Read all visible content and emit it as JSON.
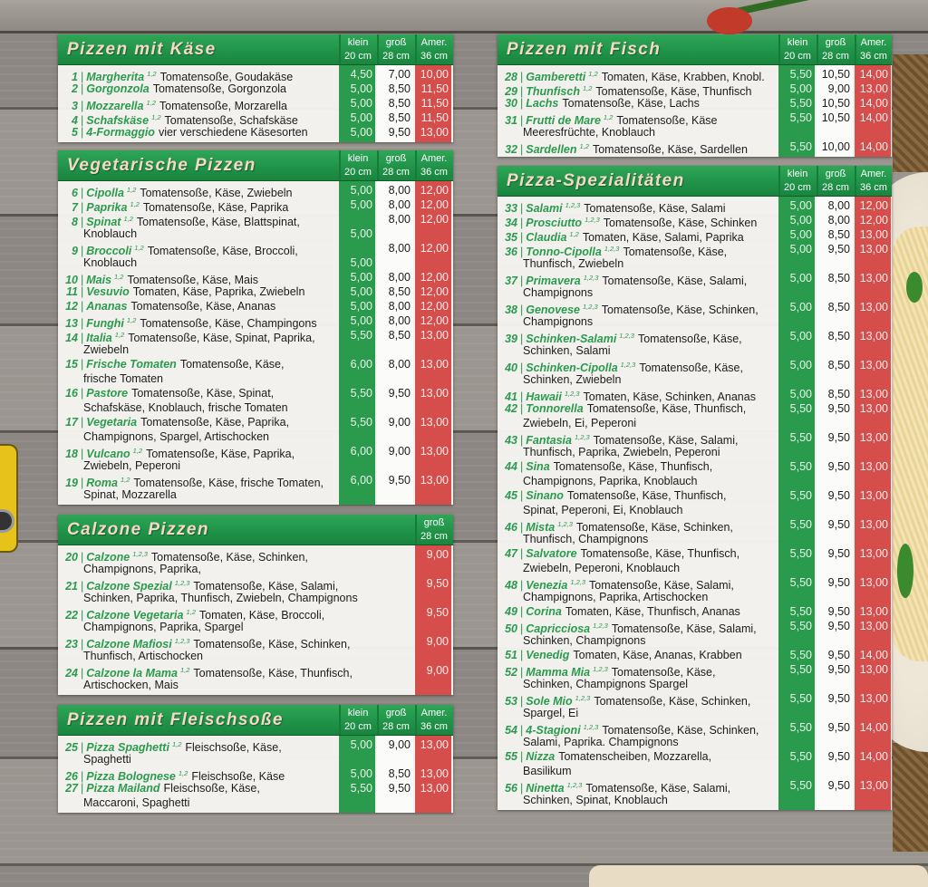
{
  "colors": {
    "green": "#2a9b4d",
    "red": "#d64e4b",
    "header_green": "#1f9248",
    "title_text": "#f6d8c6"
  },
  "sections": [
    {
      "title": "Pizzen mit Käse",
      "columns": [
        {
          "l1": "klein",
          "l2": "20 cm"
        },
        {
          "l1": "groß",
          "l2": "28 cm"
        },
        {
          "l1": "Amer.",
          "l2": "36 cm"
        }
      ],
      "items": [
        {
          "n": "1",
          "name": "Margherita",
          "sup": "1,2",
          "desc": "Tomatensoße, Goudakäse",
          "p": [
            "4,50",
            "7,00",
            "10,00"
          ]
        },
        {
          "n": "2",
          "name": "Gorgonzola",
          "desc": "Tomatensoße, Gorgonzola",
          "p": [
            "5,00",
            "8,50",
            "11,50"
          ]
        },
        {
          "n": "3",
          "name": "Mozzarella",
          "sup": "1,2",
          "desc": "Tomatensoße, Morzarella",
          "p": [
            "5,00",
            "8,50",
            "11,50"
          ]
        },
        {
          "n": "4",
          "name": "Schafskäse",
          "sup": "1,2",
          "desc": "Tomatensoße, Schafskäse",
          "p": [
            "5,00",
            "8,50",
            "11,50"
          ]
        },
        {
          "n": "5",
          "name": "4-Formaggio",
          "desc": "vier verschiedene Käsesorten",
          "p": [
            "5,00",
            "9,50",
            "13,00"
          ]
        }
      ]
    },
    {
      "title": "Vegetarische Pizzen",
      "columns": [
        {
          "l1": "klein",
          "l2": "20 cm"
        },
        {
          "l1": "groß",
          "l2": "28 cm"
        },
        {
          "l1": "Amer.",
          "l2": "36 cm"
        }
      ],
      "items": [
        {
          "n": "6",
          "name": "Cipolla",
          "sup": "1,2",
          "desc": "Tomatensoße, Käse, Zwiebeln",
          "p": [
            "5,00",
            "8,00",
            "12,00"
          ]
        },
        {
          "n": "7",
          "name": "Paprika",
          "sup": "1,2",
          "desc": "Tomatensoße, Käse, Paprika",
          "p": [
            "5,00",
            "8,00",
            "12,00"
          ]
        },
        {
          "n": "8",
          "name": "Spinat",
          "sup": "1,2",
          "desc": "Tomatensoße, Käse, Blattspinat,",
          "desc2": "Knoblauch",
          "p": [
            "",
            "8,00",
            "12,00"
          ],
          "p2": [
            "5,00",
            "",
            ""
          ]
        },
        {
          "n": "9",
          "name": "Broccoli",
          "sup": "1,2",
          "desc": "Tomatensoße, Käse, Broccoli,",
          "desc2": "Knoblauch",
          "p": [
            "",
            "8,00",
            "12,00"
          ],
          "p2": [
            "5,00",
            "",
            ""
          ]
        },
        {
          "n": "10",
          "name": "Mais",
          "sup": "1,2",
          "desc": "Tomatensoße, Käse, Mais",
          "p": [
            "5,00",
            "8,00",
            "12,00"
          ]
        },
        {
          "n": "11",
          "name": "Vesuvio",
          "desc": "Tomaten, Käse, Paprika, Zwiebeln",
          "p": [
            "5,00",
            "8,50",
            "12,00"
          ]
        },
        {
          "n": "12",
          "name": "Ananas",
          "desc": "Tomatensoße, Käse, Ananas",
          "p": [
            "5,00",
            "8,00",
            "12,00"
          ]
        },
        {
          "n": "13",
          "name": "Funghi",
          "sup": "1,2",
          "desc": "Tomatensoße, Käse, Champingons",
          "p": [
            "5,00",
            "8,00",
            "12,00"
          ]
        },
        {
          "n": "14",
          "name": "Italia",
          "sup": "1,2",
          "desc": "Tomatensoße, Käse, Spinat, Paprika,",
          "desc2": "Zwiebeln",
          "p": [
            "5,50",
            "8,50",
            "13,00"
          ]
        },
        {
          "n": "15",
          "name": "Frische Tomaten",
          "desc": "Tomatensoße, Käse,",
          "desc2": "frische Tomaten",
          "p": [
            "6,00",
            "8,00",
            "13,00"
          ]
        },
        {
          "n": "16",
          "name": "Pastore",
          "desc": "Tomatensoße, Käse, Spinat,",
          "desc2": "Schafskäse, Knoblauch, frische Tomaten",
          "p": [
            "5,50",
            "9,50",
            "13,00"
          ]
        },
        {
          "n": "17",
          "name": "Vegetaria",
          "desc": "Tomatensoße, Käse, Paprika,",
          "desc2": "Champignons, Spargel, Artischocken",
          "p": [
            "5,50",
            "9,00",
            "13,00"
          ]
        },
        {
          "n": "18",
          "name": "Vulcano",
          "sup": "1,2",
          "desc": "Tomatensoße, Käse, Paprika,",
          "desc2": "Zwiebeln, Peperoni",
          "p": [
            "6,00",
            "9,00",
            "13,00"
          ]
        },
        {
          "n": "19",
          "name": "Roma",
          "sup": "1,2",
          "desc": "Tomatensoße, Käse, frische Tomaten,",
          "desc2": "Spinat, Mozzarella",
          "p": [
            "6,00",
            "9,50",
            "13,00"
          ]
        }
      ]
    },
    {
      "title": "Calzone Pizzen",
      "columns": [
        {
          "l1": "groß",
          "l2": "28 cm"
        }
      ],
      "items": [
        {
          "n": "20",
          "name": "Calzone",
          "sup": "1,2,3",
          "desc": "Tomatensoße, Käse, Schinken,",
          "desc2": "Champignons, Paprika,",
          "p": [
            "9,00"
          ]
        },
        {
          "n": "21",
          "name": "Calzone Spezial",
          "sup": "1,2,3",
          "desc": "Tomatensoße, Käse, Salami,",
          "desc2": "Schinken, Paprika, Thunfisch, Zwiebeln, Champignons",
          "p": [
            "9,50"
          ]
        },
        {
          "n": "22",
          "name": "Calzone Vegetaria",
          "sup": "1,2",
          "desc": "Tomaten, Käse, Broccoli,",
          "desc2": "Champignons, Paprika, Spargel",
          "p": [
            "9,50"
          ]
        },
        {
          "n": "23",
          "name": "Calzone Mafiosi",
          "sup": "1,2,3",
          "desc": "Tomatensoße, Käse, Schinken,",
          "desc2": "Thunfisch, Artischocken",
          "p": [
            "9,00"
          ]
        },
        {
          "n": "24",
          "name": "Calzone la Mama",
          "sup": "1,2",
          "desc": "Tomatensoße, Käse, Thunfisch,",
          "desc2": "Artischocken, Mais",
          "p": [
            "9,00"
          ]
        }
      ]
    },
    {
      "title": "Pizzen mit Fleischsoße",
      "columns": [
        {
          "l1": "klein",
          "l2": "20 cm"
        },
        {
          "l1": "groß",
          "l2": "28 cm"
        },
        {
          "l1": "Amer.",
          "l2": "36 cm"
        }
      ],
      "items": [
        {
          "n": "25",
          "name": "Pizza Spaghetti",
          "sup": "1,2",
          "desc": "Fleischsoße, Käse,",
          "desc2": "Spaghetti",
          "p": [
            "5,00",
            "9,00",
            "13,00"
          ]
        },
        {
          "n": "26",
          "name": "Pizza Bolognese",
          "sup": "1,2",
          "desc": "Fleischsoße, Käse",
          "p": [
            "5,00",
            "8,50",
            "13,00"
          ]
        },
        {
          "n": "27",
          "name": "Pizza Mailand",
          "desc": "Fleischsoße, Käse,",
          "desc2": "Maccaroni, Spaghetti",
          "p": [
            "5,50",
            "9,50",
            "13,00"
          ]
        }
      ]
    },
    {
      "title": "Pizzen mit Fisch",
      "columns": [
        {
          "l1": "klein",
          "l2": "20 cm"
        },
        {
          "l1": "groß",
          "l2": "28 cm"
        },
        {
          "l1": "Amer.",
          "l2": "36 cm"
        }
      ],
      "items": [
        {
          "n": "28",
          "name": "Gamberetti",
          "sup": "1,2",
          "desc": "Tomaten, Käse, Krabben, Knobl.",
          "p": [
            "5,50",
            "10,50",
            "14,00"
          ]
        },
        {
          "n": "29",
          "name": "Thunfisch",
          "sup": "1,2",
          "desc": "Tomatensoße, Käse, Thunfisch",
          "p": [
            "5,00",
            "9,00",
            "13,00"
          ]
        },
        {
          "n": "30",
          "name": "Lachs",
          "desc": "Tomatensoße, Käse, Lachs",
          "p": [
            "5,50",
            "10,50",
            "14,00"
          ]
        },
        {
          "n": "31",
          "name": "Frutti de Mare",
          "sup": "1,2",
          "desc": "Tomatensoße, Käse",
          "desc2": "Meeresfrüchte, Knoblauch",
          "p": [
            "5,50",
            "10,50",
            "14,00"
          ]
        },
        {
          "n": "32",
          "name": "Sardellen",
          "sup": "1,2",
          "desc": "Tomatensoße, Käse, Sardellen",
          "p": [
            "5,50",
            "10,00",
            "14,00"
          ]
        }
      ]
    },
    {
      "title": "Pizza-Spezialitäten",
      "columns": [
        {
          "l1": "klein",
          "l2": "20 cm"
        },
        {
          "l1": "groß",
          "l2": "28 cm"
        },
        {
          "l1": "Amer.",
          "l2": "36 cm"
        }
      ],
      "items": [
        {
          "n": "33",
          "name": "Salami",
          "sup": "1,2,3",
          "desc": "Tomatensoße, Käse, Salami",
          "p": [
            "5,00",
            "8,00",
            "12,00"
          ]
        },
        {
          "n": "34",
          "name": "Prosciutto",
          "sup": "1,2,3",
          "desc": "Tomatensoße, Käse, Schinken",
          "p": [
            "5,00",
            "8,00",
            "12,00"
          ]
        },
        {
          "n": "35",
          "name": "Claudia",
          "sup": "1,2",
          "desc": "Tomaten, Käse, Salami, Paprika",
          "p": [
            "5,00",
            "8,50",
            "13,00"
          ]
        },
        {
          "n": "36",
          "name": "Tonno-Cipolla",
          "sup": "1,2,3",
          "desc": "Tomatensoße, Käse,",
          "desc2": "Thunfisch, Zwiebeln",
          "p": [
            "5,00",
            "9,50",
            "13,00"
          ]
        },
        {
          "n": "37",
          "name": "Primavera",
          "sup": "1,2,3",
          "desc": "Tomatensoße, Käse, Salami,",
          "desc2": "Champignons",
          "p": [
            "5,00",
            "8,50",
            "13,00"
          ]
        },
        {
          "n": "38",
          "name": "Genovese",
          "sup": "1,2,3",
          "desc": "Tomatensoße, Käse, Schinken,",
          "desc2": "Champignons",
          "p": [
            "5,00",
            "8,50",
            "13,00"
          ]
        },
        {
          "n": "39",
          "name": "Schinken-Salami",
          "sup": "1,2,3",
          "desc": "Tomatensoße, Käse,",
          "desc2": "Schinken, Salami",
          "p": [
            "5,00",
            "8,50",
            "13,00"
          ]
        },
        {
          "n": "40",
          "name": "Schinken-Cipolla",
          "sup": "1,2,3",
          "desc": "Tomatensoße, Käse,",
          "desc2": "Schinken, Zwiebeln",
          "p": [
            "5,00",
            "8,50",
            "13,00"
          ]
        },
        {
          "n": "41",
          "name": "Hawaii",
          "sup": "1,2,3",
          "desc": "Tomaten, Käse, Schinken, Ananas",
          "p": [
            "5,00",
            "8,50",
            "13,00"
          ]
        },
        {
          "n": "42",
          "name": "Tonnorella",
          "desc": "Tomatensoße, Käse, Thunfisch,",
          "desc2": "Zwiebeln, Ei, Peperoni",
          "p": [
            "5,50",
            "9,50",
            "13,00"
          ]
        },
        {
          "n": "43",
          "name": "Fantasia",
          "sup": "1,2,3",
          "desc": "Tomatensoße, Käse, Salami,",
          "desc2": "Thunfisch, Paprika, Zwiebeln, Peperoni",
          "p": [
            "5,50",
            "9,50",
            "13,00"
          ]
        },
        {
          "n": "44",
          "name": "Sina",
          "desc": "Tomatensoße, Käse, Thunfisch,",
          "desc2": "Champignons, Paprika, Knoblauch",
          "p": [
            "5,50",
            "9,50",
            "13,00"
          ]
        },
        {
          "n": "45",
          "name": "Sinano",
          "desc": "Tomatensoße, Käse, Thunfisch,",
          "desc2": "Spinat, Peperoni, Ei, Knoblauch",
          "p": [
            "5,50",
            "9,50",
            "13,00"
          ]
        },
        {
          "n": "46",
          "name": "Mista",
          "sup": "1,2,3",
          "desc": "Tomatensoße, Käse, Schinken,",
          "desc2": "Thunfisch, Champignons",
          "p": [
            "5,50",
            "9,50",
            "13,00"
          ]
        },
        {
          "n": "47",
          "name": "Salvatore",
          "desc": "Tomatensoße, Käse, Thunfisch,",
          "desc2": "Zwiebeln, Peperoni, Knoblauch",
          "p": [
            "5,50",
            "9,50",
            "13,00"
          ]
        },
        {
          "n": "48",
          "name": "Venezia",
          "sup": "1,2,3",
          "desc": "Tomatensoße, Käse, Salami,",
          "desc2": "Champignons, Paprika, Artischocken",
          "p": [
            "5,50",
            "9,50",
            "13,00"
          ]
        },
        {
          "n": "49",
          "name": "Corina",
          "desc": "Tomaten, Käse, Thunfisch, Ananas",
          "p": [
            "5,50",
            "9,50",
            "13,00"
          ]
        },
        {
          "n": "50",
          "name": "Capricciosa",
          "sup": "1,2,3",
          "desc": "Tomatensoße, Käse, Salami,",
          "desc2": "Schinken, Champignons",
          "p": [
            "5,50",
            "9,50",
            "13,00"
          ]
        },
        {
          "n": "51",
          "name": "Venedig",
          "desc": "Tomaten, Käse, Ananas, Krabben",
          "p": [
            "5,50",
            "9,50",
            "14,00"
          ]
        },
        {
          "n": "52",
          "name": "Mamma Mia",
          "sup": "1,2,3",
          "desc": "Tomatensoße, Käse,",
          "desc2": "Schinken, Champignons Spargel",
          "p": [
            "5,50",
            "9,50",
            "13,00"
          ]
        },
        {
          "n": "53",
          "name": "Sole Mio",
          "sup": "1,2,3",
          "desc": "Tomatensoße, Käse, Schinken,",
          "desc2": "Spargel, Ei",
          "p": [
            "5,50",
            "9,50",
            "13,00"
          ]
        },
        {
          "n": "54",
          "name": "4-Stagioni",
          "sup": "1,2,3",
          "desc": "Tomatensoße, Käse, Schinken,",
          "desc2": "Salami, Paprika. Champignons",
          "p": [
            "5,50",
            "9,50",
            "14,00"
          ]
        },
        {
          "n": "55",
          "name": "Nizza",
          "desc": "Tomatenscheiben, Mozzarella,",
          "desc2": "Basilikum",
          "p": [
            "5,50",
            "9,50",
            "14,00"
          ]
        },
        {
          "n": "56",
          "name": "Ninetta",
          "sup": "1,2,3",
          "desc": "Tomatensoße, Käse, Salami,",
          "desc2": "Schinken, Spinat, Knoblauch",
          "p": [
            "5,50",
            "9,50",
            "13,00"
          ]
        }
      ]
    }
  ]
}
